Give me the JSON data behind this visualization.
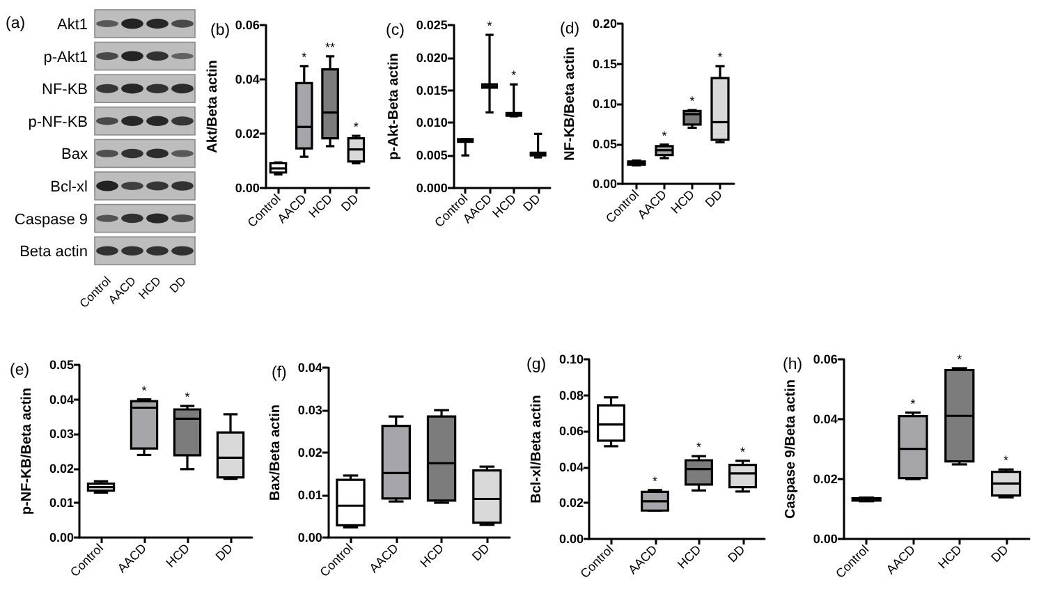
{
  "chart_data": [
    {
      "type": "other",
      "title": "(a)",
      "categories": [
        "Control",
        "AACD",
        "HCD",
        "DD"
      ],
      "y_categories": [
        "Akt1",
        "p-Akt1",
        "NF-KB",
        "p-NF-KB",
        "Bax",
        "Bcl-xl",
        "Caspase 9",
        "Beta actin"
      ]
    },
    {
      "type": "box",
      "title": "(b)",
      "ylabel": "Akt/Beta actin",
      "categories": [
        "Control",
        "AACD",
        "HCD",
        "DD"
      ],
      "colors": [
        "#ffffff",
        "#a6a6aa",
        "#7c7c7c",
        "#d9d9d9"
      ],
      "boxes": [
        {
          "low": 0.005,
          "q1": 0.0057,
          "median": 0.0072,
          "q3": 0.0091,
          "high": 0.0094
        },
        {
          "low": 0.0115,
          "q1": 0.0146,
          "median": 0.0225,
          "q3": 0.0386,
          "high": 0.0449
        },
        {
          "low": 0.0154,
          "q1": 0.0183,
          "median": 0.0278,
          "q3": 0.0437,
          "high": 0.0485
        },
        {
          "low": 0.0091,
          "q1": 0.0098,
          "median": 0.0142,
          "q3": 0.0183,
          "high": 0.0192
        }
      ],
      "ylim": [
        0,
        0.06
      ],
      "yticks": [
        {
          "value": 0,
          "label": "0.00"
        },
        0.02,
        0.04,
        0.06
      ],
      "annotations": [
        {
          "text": "*",
          "x": "AACD",
          "y": 0.0449
        },
        {
          "text": "**",
          "x": "HCD",
          "y": 0.0485
        },
        {
          "text": "*",
          "x": "DD",
          "y": 0.0192
        }
      ]
    },
    {
      "type": "box",
      "title": "(c)",
      "ylabel": "p-Akt-Beta actin",
      "categories": [
        "Control",
        "AACD",
        "HCD",
        "DD"
      ],
      "boxes": [
        {
          "low": 0.005,
          "q1": 0.0071,
          "median": 0.0073,
          "q3": 0.0075,
          "high": 0.0075
        },
        {
          "low": 0.0116,
          "q1": 0.0154,
          "median": 0.0156,
          "q3": 0.0159,
          "high": 0.0235
        },
        {
          "low": 0.011,
          "q1": 0.0111,
          "median": 0.0113,
          "q3": 0.0115,
          "high": 0.0159
        },
        {
          "low": 0.0047,
          "q1": 0.005,
          "median": 0.0052,
          "q3": 0.0054,
          "high": 0.0083
        }
      ],
      "ylim": [
        0,
        0.025
      ],
      "yticks": [
        {
          "value": 0,
          "label": "0.000"
        },
        0.005,
        {
          "value": 0.01,
          "label": "0.010"
        },
        0.015,
        {
          "value": 0.02,
          "label": "0.020"
        },
        0.025
      ],
      "annotations": [
        {
          "text": "*",
          "x": "AACD",
          "y": 0.0235
        },
        {
          "text": "*",
          "x": "HCD",
          "y": 0.0159
        }
      ]
    },
    {
      "type": "box",
      "title": "(d)",
      "ylabel": "NF-KB/Beta actin",
      "categories": [
        "Control",
        "AACD",
        "HCD",
        "DD"
      ],
      "colors": [
        "#ffffff",
        "#a6a6aa",
        "#7c7c7c",
        "#d9d9d9"
      ],
      "boxes": [
        {
          "low": 0.023,
          "q1": 0.024,
          "median": 0.026,
          "q3": 0.028,
          "high": 0.029
        },
        {
          "low": 0.032,
          "q1": 0.036,
          "median": 0.042,
          "q3": 0.047,
          "high": 0.049
        },
        {
          "low": 0.07,
          "q1": 0.074,
          "median": 0.087,
          "q3": 0.091,
          "high": 0.092
        },
        {
          "low": 0.052,
          "q1": 0.055,
          "median": 0.077,
          "q3": 0.132,
          "high": 0.147
        }
      ],
      "ylim": [
        0,
        0.2
      ],
      "yticks": [
        {
          "value": 0,
          "label": "0.00"
        },
        0.05,
        {
          "value": 0.1,
          "label": "0.10"
        },
        0.15,
        {
          "value": 0.2,
          "label": "0.20"
        }
      ],
      "annotations": [
        {
          "text": "*",
          "x": "AACD",
          "y": 0.049
        },
        {
          "text": "*",
          "x": "HCD",
          "y": 0.092
        },
        {
          "text": "*",
          "x": "DD",
          "y": 0.147
        }
      ]
    },
    {
      "type": "box",
      "title": "(e)",
      "ylabel": "p-NF-KB/Beta actin",
      "categories": [
        "Control",
        "AACD",
        "HCD",
        "DD"
      ],
      "colors": [
        "#ffffff",
        "#a6a6aa",
        "#7c7c7c",
        "#d9d9d9"
      ],
      "boxes": [
        {
          "low": 0.013,
          "q1": 0.0136,
          "median": 0.0146,
          "q3": 0.0156,
          "high": 0.0163
        },
        {
          "low": 0.0239,
          "q1": 0.0258,
          "median": 0.0376,
          "q3": 0.0395,
          "high": 0.04
        },
        {
          "low": 0.0198,
          "q1": 0.0238,
          "median": 0.0344,
          "q3": 0.0371,
          "high": 0.0381
        },
        {
          "low": 0.017,
          "q1": 0.0174,
          "median": 0.0231,
          "q3": 0.0304,
          "high": 0.0357
        }
      ],
      "ylim": [
        0,
        0.05
      ],
      "yticks": [
        {
          "value": 0,
          "label": "0.00"
        },
        0.01,
        0.02,
        0.03,
        0.04,
        0.05
      ],
      "annotations": [
        {
          "text": "*",
          "x": "AACD",
          "y": 0.04
        },
        {
          "text": "*",
          "x": "HCD",
          "y": 0.0381
        }
      ]
    },
    {
      "type": "box",
      "title": "(f)",
      "ylabel": "Bax/Beta actin",
      "categories": [
        "Control",
        "AACD",
        "HCD",
        "DD"
      ],
      "colors": [
        "#ffffff",
        "#a6a6aa",
        "#7c7c7c",
        "#d9d9d9"
      ],
      "boxes": [
        {
          "low": 0.0024,
          "q1": 0.0029,
          "median": 0.0075,
          "q3": 0.0136,
          "high": 0.0146
        },
        {
          "low": 0.0085,
          "q1": 0.0092,
          "median": 0.0152,
          "q3": 0.0263,
          "high": 0.0285
        },
        {
          "low": 0.0082,
          "q1": 0.0087,
          "median": 0.0175,
          "q3": 0.0285,
          "high": 0.03
        },
        {
          "low": 0.003,
          "q1": 0.0035,
          "median": 0.0091,
          "q3": 0.0158,
          "high": 0.0167
        }
      ],
      "ylim": [
        0,
        0.04
      ],
      "yticks": [
        {
          "value": 0,
          "label": "0.00"
        },
        0.01,
        0.02,
        0.03,
        0.04
      ]
    },
    {
      "type": "box",
      "title": "(g)",
      "ylabel": "Bcl-xl/Beta actin",
      "categories": [
        "Control",
        "AACD",
        "HCD",
        "DD"
      ],
      "colors": [
        "#ffffff",
        "#a6a6aa",
        "#7c7c7c",
        "#d9d9d9"
      ],
      "boxes": [
        {
          "low": 0.0516,
          "q1": 0.0547,
          "median": 0.0637,
          "q3": 0.0744,
          "high": 0.0788
        },
        {
          "low": 0.0158,
          "q1": 0.0158,
          "median": 0.021,
          "q3": 0.0262,
          "high": 0.0272
        },
        {
          "low": 0.027,
          "q1": 0.0303,
          "median": 0.0389,
          "q3": 0.0438,
          "high": 0.0461
        },
        {
          "low": 0.0264,
          "q1": 0.0288,
          "median": 0.0365,
          "q3": 0.0412,
          "high": 0.0435
        }
      ],
      "ylim": [
        0,
        0.1
      ],
      "yticks": [
        {
          "value": 0,
          "label": "0.00"
        },
        0.02,
        0.04,
        0.06,
        0.08,
        {
          "value": 0.1,
          "label": "0.10"
        }
      ],
      "annotations": [
        {
          "text": "*",
          "x": "AACD",
          "y": 0.0272
        },
        {
          "text": "*",
          "x": "HCD",
          "y": 0.0461
        },
        {
          "text": "*",
          "x": "DD",
          "y": 0.0435
        }
      ]
    },
    {
      "type": "box",
      "title": "(h)",
      "ylabel": "Caspase 9/Beta actin",
      "categories": [
        "Control",
        "AACD",
        "HCD",
        "DD"
      ],
      "colors": [
        "#ffffff",
        "#a6a6aa",
        "#7c7c7c",
        "#d9d9d9"
      ],
      "boxes": [
        {
          "low": 0.0126,
          "q1": 0.0128,
          "median": 0.0132,
          "q3": 0.0136,
          "high": 0.0138
        },
        {
          "low": 0.02,
          "q1": 0.0203,
          "median": 0.0301,
          "q3": 0.041,
          "high": 0.0422
        },
        {
          "low": 0.0249,
          "q1": 0.0259,
          "median": 0.0411,
          "q3": 0.0564,
          "high": 0.057
        },
        {
          "low": 0.0139,
          "q1": 0.0145,
          "median": 0.0185,
          "q3": 0.0224,
          "high": 0.0232
        }
      ],
      "ylim": [
        0,
        0.06
      ],
      "yticks": [
        {
          "value": 0,
          "label": "0.00"
        },
        0.02,
        0.04,
        0.06
      ],
      "annotations": [
        {
          "text": "*",
          "x": "AACD",
          "y": 0.0422
        },
        {
          "text": "*",
          "x": "HCD",
          "y": 0.057
        },
        {
          "text": "*",
          "x": "DD",
          "y": 0.0232
        }
      ]
    }
  ]
}
